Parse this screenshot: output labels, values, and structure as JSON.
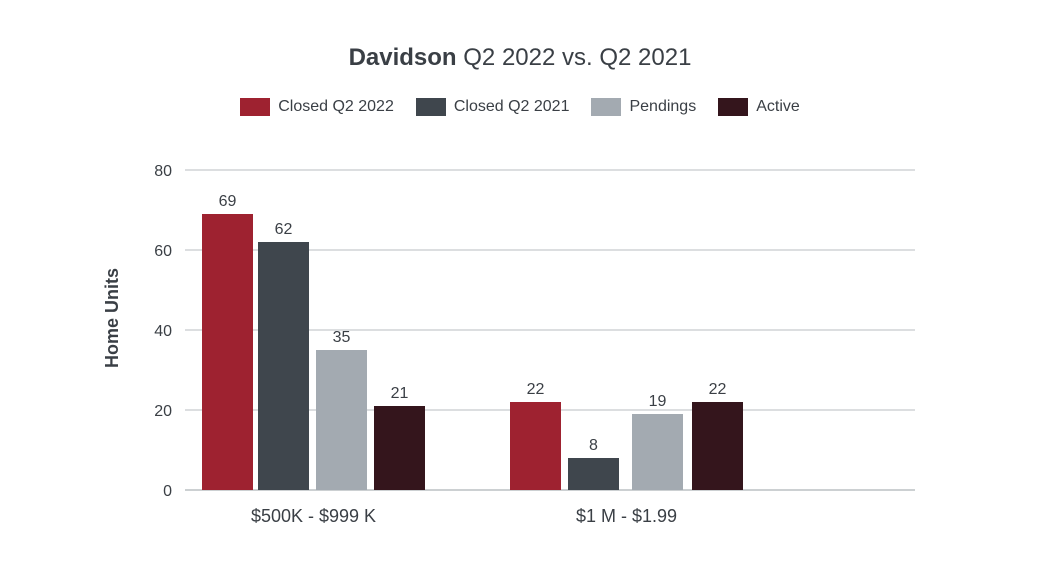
{
  "chart_data": {
    "type": "bar",
    "title_bold": "Davidson",
    "title_rest": " Q2 2022 vs. Q2 2021",
    "ylabel": "Home Units",
    "xlabel": "",
    "ylim": [
      0,
      80
    ],
    "yticks": [
      0,
      20,
      40,
      60,
      80
    ],
    "grid": true,
    "legend_position": "top-center",
    "categories": [
      "$500K - $999 K",
      "$1 M - $1.99"
    ],
    "series": [
      {
        "name": "Closed Q2 2022",
        "color": "#9e2230",
        "values": [
          69,
          22
        ]
      },
      {
        "name": "Closed Q2 2021",
        "color": "#3f464d",
        "values": [
          62,
          8
        ]
      },
      {
        "name": "Pendings",
        "color": "#a3aab1",
        "values": [
          35,
          19
        ]
      },
      {
        "name": "Active",
        "color": "#34151c",
        "values": [
          21,
          22
        ]
      }
    ]
  }
}
